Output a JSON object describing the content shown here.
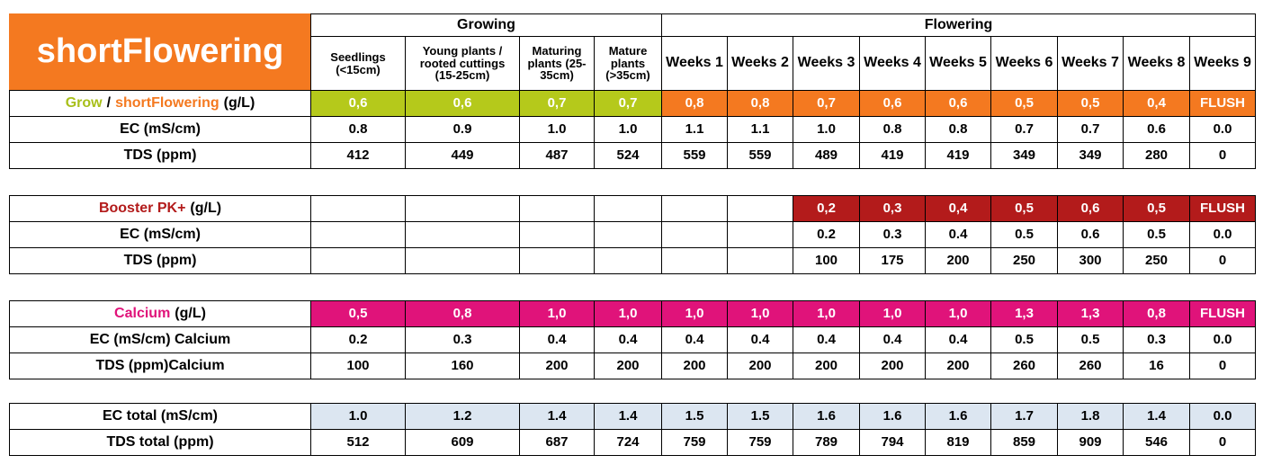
{
  "title": "shortFlowering",
  "header": {
    "groups": [
      "Growing",
      "Flowering"
    ],
    "columns": [
      "Seedlings (<15cm)",
      "Young plants / rooted cuttings (15-25cm)",
      "Maturing plants (25-35cm)",
      "Mature plants (>35cm)",
      "Weeks 1",
      "Weeks 2",
      "Weeks 3",
      "Weeks 4",
      "Weeks 5",
      "Weeks 6",
      "Weeks 7",
      "Weeks 8",
      "Weeks 9"
    ]
  },
  "tables": [
    {
      "rows": [
        {
          "label": [
            "Grow",
            "/",
            "shortFlowering",
            "(g/L)"
          ],
          "cells": [
            "0,6",
            "0,6",
            "0,7",
            "0,7",
            "0,8",
            "0,8",
            "0,7",
            "0,6",
            "0,6",
            "0,5",
            "0,5",
            "0,4",
            "FLUSH"
          ]
        },
        {
          "label": [
            "EC (mS/cm)"
          ],
          "cells": [
            "0.8",
            "0.9",
            "1.0",
            "1.0",
            "1.1",
            "1.1",
            "1.0",
            "0.8",
            "0.8",
            "0.7",
            "0.7",
            "0.6",
            "0.0"
          ]
        },
        {
          "label": [
            "TDS (ppm)"
          ],
          "cells": [
            "412",
            "449",
            "487",
            "524",
            "559",
            "559",
            "489",
            "419",
            "419",
            "349",
            "349",
            "280",
            "0"
          ]
        }
      ]
    },
    {
      "rows": [
        {
          "label": [
            "Booster PK+",
            "(g/L)"
          ],
          "cells": [
            null,
            null,
            null,
            null,
            null,
            null,
            "0,2",
            "0,3",
            "0,4",
            "0,5",
            "0,6",
            "0,5",
            "FLUSH"
          ]
        },
        {
          "label": [
            "EC (mS/cm)"
          ],
          "cells": [
            null,
            null,
            null,
            null,
            null,
            null,
            "0.2",
            "0.3",
            "0.4",
            "0.5",
            "0.6",
            "0.5",
            "0.0"
          ]
        },
        {
          "label": [
            "TDS (ppm)"
          ],
          "cells": [
            null,
            null,
            null,
            null,
            null,
            null,
            "100",
            "175",
            "200",
            "250",
            "300",
            "250",
            "0"
          ]
        }
      ]
    },
    {
      "rows": [
        {
          "label": [
            "Calcium",
            "(g/L)"
          ],
          "cells": [
            "0,5",
            "0,8",
            "1,0",
            "1,0",
            "1,0",
            "1,0",
            "1,0",
            "1,0",
            "1,0",
            "1,3",
            "1,3",
            "0,8",
            "FLUSH"
          ]
        },
        {
          "label": [
            "EC (mS/cm) Calcium"
          ],
          "cells": [
            "0.2",
            "0.3",
            "0.4",
            "0.4",
            "0.4",
            "0.4",
            "0.4",
            "0.4",
            "0.4",
            "0.5",
            "0.5",
            "0.3",
            "0.0"
          ]
        },
        {
          "label": [
            "TDS (ppm)Calcium"
          ],
          "cells": [
            "100",
            "160",
            "200",
            "200",
            "200",
            "200",
            "200",
            "200",
            "200",
            "260",
            "260",
            "16",
            "0"
          ]
        }
      ]
    },
    {
      "rows": [
        {
          "label": [
            "EC total (mS/cm)"
          ],
          "cells": [
            "1.0",
            "1.2",
            "1.4",
            "1.4",
            "1.5",
            "1.5",
            "1.6",
            "1.6",
            "1.6",
            "1.7",
            "1.8",
            "1.4",
            "0.0"
          ]
        },
        {
          "label": [
            "TDS total (ppm)"
          ],
          "cells": [
            "512",
            "609",
            "687",
            "724",
            "759",
            "759",
            "789",
            "794",
            "819",
            "859",
            "909",
            "546",
            "0"
          ]
        }
      ]
    }
  ]
}
